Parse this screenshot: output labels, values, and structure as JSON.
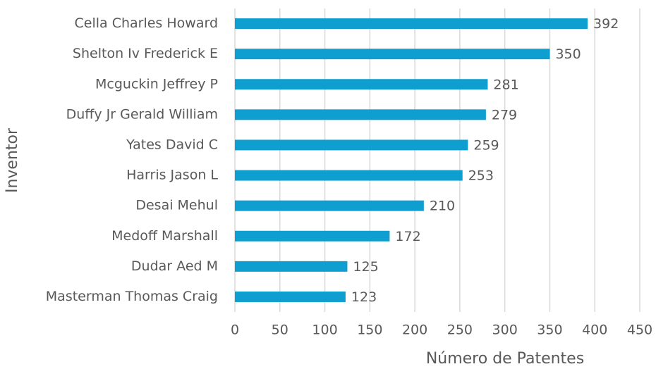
{
  "chart_data": {
    "type": "hbar",
    "x_label": "Número de Patentes",
    "y_label": "Inventor",
    "categories": [
      "Cella Charles Howard",
      "Shelton Iv Frederick E",
      "Mcguckin Jeffrey P",
      "Duffy Jr Gerald William",
      "Yates David C",
      "Harris Jason L",
      "Desai Mehul",
      "Medoff Marshall",
      "Dudar Aed M",
      "Masterman Thomas Craig"
    ],
    "values": [
      392,
      350,
      281,
      279,
      259,
      253,
      210,
      172,
      125,
      123
    ],
    "color": "#0e9fd0",
    "xlim": [
      0,
      450
    ],
    "xticks": [
      0,
      50,
      100,
      150,
      200,
      250,
      300,
      350,
      400,
      450
    ],
    "grid": true
  }
}
